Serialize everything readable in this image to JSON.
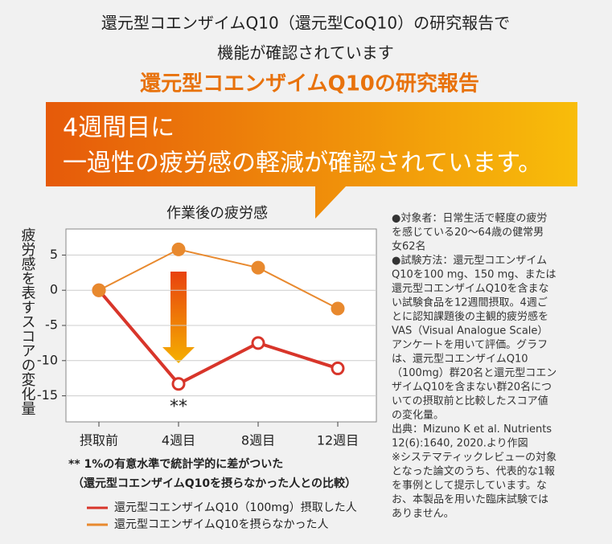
{
  "header": {
    "line1": "還元型コエンザイムQ10（還元型CoQ10）の研究報告で",
    "line2": "機能が確認されています",
    "highlight": "還元型コエンザイムQ10の研究報告"
  },
  "banner": {
    "line1": "4週間目に",
    "line2": "一過性の疲労感の軽減が確認されています。"
  },
  "chart_data": {
    "type": "line",
    "title": "作業後の疲労感",
    "y_label": "疲労感を表すスコアの変化量",
    "categories": [
      "摂取前",
      "4週目",
      "8週目",
      "12週目"
    ],
    "series": [
      {
        "name": "還元型コエンザイムQ10（100mg）摂取した人",
        "color": "#d8352a",
        "values": [
          0,
          -13.3,
          -7.5,
          -11.1
        ]
      },
      {
        "name": "還元型コエンザイムQ10を摂らなかった人",
        "color": "#e8892e",
        "values": [
          0,
          5.8,
          3.2,
          -2.6
        ]
      }
    ],
    "ylim": [
      -18.7,
      8.7
    ],
    "yticks": [
      -15,
      -10,
      -5,
      0,
      5
    ],
    "grid": true,
    "annotation": "**",
    "footnote": [
      "** 1%の有意水準で統計学的に差がついた",
      "（還元型コエンザイムQ10を摂らなかった人との比較）"
    ]
  },
  "notes": [
    "●対象者：日常生活で軽度の疲労",
    "を感じている20～64歳の健常男",
    "女62名",
    "●試験方法：還元型コエンザイム",
    "Q10を100 mg、150 mg、または",
    "還元型コエンザイムQ10を含まな",
    "い試験食品を12週間摂取。4週ご",
    "とに認知課題後の主観的疲労感を",
    "VAS（Visual Analogue Scale）",
    "アンケートを用いて評価。グラフ",
    "は、還元型コエンザイムQ10",
    "（100mg）群20名と還元型コエン",
    "ザイムQ10を含まない群20名につ",
    "いての摂取前と比較したスコア値",
    "の変化量。",
    "出典：Mizuno K et al. Nutrients",
    "12(6):1640, 2020.より作図",
    "※システマティックレビューの対象",
    "となった論文のうち、代表的な1報",
    "を事例として提示しています。な",
    "お、本製品を用いた臨床試験では",
    "ありません。"
  ]
}
